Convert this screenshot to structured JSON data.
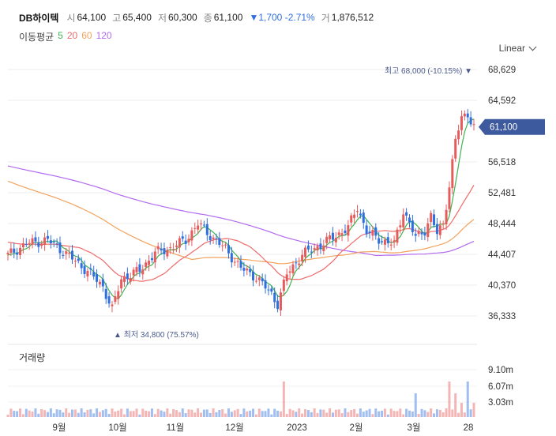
{
  "header": {
    "name": "DB하이텍",
    "open_label": "시",
    "open": "64,100",
    "high_label": "고",
    "high": "65,400",
    "low_label": "저",
    "low": "60,300",
    "close_label": "종",
    "close": "61,100",
    "change": "▼1,700 -2.71%",
    "volume_label": "거",
    "volume": "1,876,512"
  },
  "ma": {
    "title": "이동평균",
    "p5": "5",
    "p20": "20",
    "p60": "60",
    "p120": "120"
  },
  "scale": {
    "label": "Linear"
  },
  "colors": {
    "up": "#e65c5c",
    "down": "#2f6fe0",
    "ma5": "#3fb34f",
    "ma20": "#ef6a6a",
    "ma60": "#f3a25d",
    "ma120": "#b36bf0",
    "price_tag": "#3e5a9f"
  },
  "chart_data": {
    "type": "candlestick",
    "y_ticks": [
      "68,629",
      "64,592",
      "56,518",
      "52,481",
      "48,444",
      "44,407",
      "40,370",
      "36,333"
    ],
    "x_ticks": [
      "9월",
      "10월",
      "11월",
      "12월",
      "2023",
      "2월",
      "3월",
      "28"
    ],
    "current_price": "61,100",
    "high_marker": "최고 68,000 (-10.15%)",
    "low_marker": "최저 34,800 (75.57%)",
    "volume_title": "거래량",
    "volume_ticks": [
      "9.10m",
      "6.07m",
      "3.03m"
    ]
  }
}
